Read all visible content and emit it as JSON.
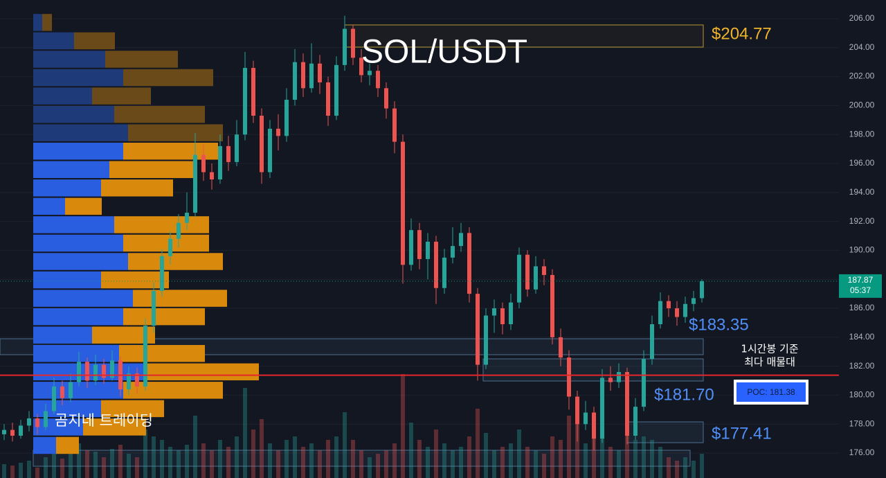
{
  "chart_data": {
    "type": "candlestick",
    "title": "SOL/USDT",
    "ylim": [
      174.28,
      207.29
    ],
    "yticks": [
      {
        "value": 206,
        "label": "206.00"
      },
      {
        "value": 204,
        "label": "204.00"
      },
      {
        "value": 202,
        "label": "202.00"
      },
      {
        "value": 200,
        "label": "200.00"
      },
      {
        "value": 198,
        "label": "198.00"
      },
      {
        "value": 196,
        "label": "196.00"
      },
      {
        "value": 194,
        "label": "194.00"
      },
      {
        "value": 192,
        "label": "192.00"
      },
      {
        "value": 190,
        "label": "190.00"
      },
      {
        "value": 188,
        "label": "188.00"
      },
      {
        "value": 186,
        "label": "186.00"
      },
      {
        "value": 184,
        "label": "184.00"
      },
      {
        "value": 182,
        "label": "182.00"
      },
      {
        "value": 180,
        "label": "180.00"
      },
      {
        "value": 178,
        "label": "178.00"
      },
      {
        "value": 176,
        "label": "176.00"
      }
    ],
    "colors": {
      "up": "#26a69a",
      "down": "#ef5350"
    },
    "ohlc": [
      [
        177.3,
        178.0,
        176.9,
        177.6
      ],
      [
        177.6,
        178.1,
        176.8,
        177.2
      ],
      [
        177.2,
        178.3,
        177.0,
        177.9
      ],
      [
        177.9,
        178.9,
        177.5,
        178.4
      ],
      [
        178.4,
        178.7,
        177.3,
        177.8
      ],
      [
        177.8,
        179.4,
        177.6,
        178.9
      ],
      [
        178.9,
        181.2,
        178.7,
        180.6
      ],
      [
        180.6,
        181.0,
        179.3,
        179.8
      ],
      [
        179.8,
        181.5,
        179.5,
        180.9
      ],
      [
        180.9,
        183.0,
        180.6,
        182.3
      ],
      [
        182.3,
        182.6,
        180.5,
        181.0
      ],
      [
        181.0,
        182.8,
        180.7,
        182.1
      ],
      [
        182.1,
        182.5,
        180.8,
        181.2
      ],
      [
        181.2,
        183.1,
        181.0,
        182.4
      ],
      [
        182.4,
        182.7,
        179.9,
        180.4
      ],
      [
        180.4,
        182.0,
        180.0,
        181.5
      ],
      [
        181.5,
        181.9,
        180.1,
        180.6
      ],
      [
        180.6,
        185.3,
        180.3,
        184.8
      ],
      [
        184.8,
        187.8,
        184.3,
        187.2
      ],
      [
        187.2,
        190.1,
        186.8,
        189.6
      ],
      [
        189.6,
        191.3,
        189.0,
        190.8
      ],
      [
        190.8,
        192.5,
        190.2,
        191.9
      ],
      [
        191.9,
        194.0,
        191.4,
        192.6
      ],
      [
        192.6,
        198.1,
        192.3,
        196.6
      ],
      [
        196.6,
        197.3,
        194.8,
        195.4
      ],
      [
        195.4,
        196.0,
        194.2,
        194.9
      ],
      [
        194.9,
        198.0,
        194.6,
        197.2
      ],
      [
        197.2,
        197.9,
        195.5,
        196.1
      ],
      [
        196.1,
        199.0,
        195.8,
        198.0
      ],
      [
        198.0,
        203.7,
        197.6,
        202.6
      ],
      [
        202.6,
        203.1,
        198.8,
        199.3
      ],
      [
        199.3,
        199.8,
        194.6,
        195.4
      ],
      [
        195.4,
        199.0,
        195.0,
        198.4
      ],
      [
        198.4,
        199.4,
        196.9,
        197.9
      ],
      [
        197.9,
        201.2,
        197.5,
        200.4
      ],
      [
        200.4,
        203.9,
        200.0,
        203.0
      ],
      [
        203.0,
        203.6,
        200.6,
        201.2
      ],
      [
        201.2,
        204.3,
        200.9,
        202.9
      ],
      [
        202.9,
        203.5,
        200.8,
        201.6
      ],
      [
        201.6,
        202.0,
        198.6,
        199.3
      ],
      [
        199.3,
        203.4,
        199.0,
        202.8
      ],
      [
        202.8,
        206.2,
        202.4,
        205.3
      ],
      [
        205.3,
        205.6,
        202.8,
        203.3
      ],
      [
        203.3,
        203.9,
        201.6,
        202.1
      ],
      [
        202.1,
        202.9,
        201.4,
        202.4
      ],
      [
        202.4,
        202.8,
        200.6,
        201.2
      ],
      [
        201.2,
        201.6,
        199.1,
        199.8
      ],
      [
        199.8,
        200.3,
        196.7,
        197.5
      ],
      [
        197.5,
        198.0,
        187.7,
        189.0
      ],
      [
        189.0,
        192.2,
        188.6,
        191.4
      ],
      [
        191.4,
        191.9,
        188.7,
        189.4
      ],
      [
        189.4,
        191.2,
        188.0,
        190.6
      ],
      [
        190.6,
        191.0,
        186.3,
        187.4
      ],
      [
        187.4,
        190.1,
        187.0,
        189.5
      ],
      [
        189.5,
        191.6,
        189.1,
        190.3
      ],
      [
        190.3,
        191.9,
        189.9,
        191.2
      ],
      [
        191.2,
        191.6,
        186.4,
        187.0
      ],
      [
        187.0,
        187.4,
        181.0,
        182.1
      ],
      [
        182.1,
        186.0,
        181.8,
        185.5
      ],
      [
        185.5,
        186.6,
        184.3,
        186.0
      ],
      [
        186.0,
        186.4,
        184.2,
        184.9
      ],
      [
        184.9,
        187.0,
        184.5,
        186.4
      ],
      [
        186.4,
        190.2,
        186.0,
        189.7
      ],
      [
        189.7,
        190.0,
        186.8,
        187.3
      ],
      [
        187.3,
        189.6,
        187.0,
        188.9
      ],
      [
        188.9,
        189.4,
        187.6,
        188.3
      ],
      [
        188.3,
        188.7,
        183.5,
        184.0
      ],
      [
        184.0,
        184.6,
        182.0,
        182.6
      ],
      [
        182.6,
        183.1,
        179.0,
        179.9
      ],
      [
        179.9,
        180.3,
        176.8,
        178.0
      ],
      [
        178.0,
        179.6,
        177.6,
        178.8
      ],
      [
        178.8,
        179.2,
        176.2,
        177.0
      ],
      [
        177.0,
        181.8,
        176.7,
        181.2
      ],
      [
        181.2,
        182.0,
        180.3,
        180.9
      ],
      [
        180.9,
        182.2,
        180.5,
        181.6
      ],
      [
        181.6,
        181.9,
        176.6,
        177.2
      ],
      [
        177.2,
        179.8,
        176.9,
        179.2
      ],
      [
        179.2,
        183.1,
        178.9,
        182.5
      ],
      [
        182.5,
        185.5,
        182.1,
        184.9
      ],
      [
        184.9,
        187.1,
        184.6,
        186.5
      ],
      [
        186.5,
        186.9,
        185.4,
        186.0
      ],
      [
        186.0,
        186.5,
        184.8,
        185.4
      ],
      [
        185.4,
        186.8,
        185.0,
        186.3
      ],
      [
        186.3,
        187.2,
        185.8,
        186.7
      ],
      [
        186.7,
        188.0,
        186.4,
        187.87
      ]
    ],
    "volume": [
      20,
      18,
      22,
      25,
      15,
      30,
      45,
      28,
      35,
      50,
      40,
      38,
      30,
      42,
      48,
      35,
      30,
      70,
      60,
      55,
      45,
      40,
      48,
      90,
      50,
      40,
      55,
      45,
      60,
      130,
      70,
      85,
      50,
      40,
      55,
      60,
      45,
      50,
      40,
      55,
      60,
      95,
      55,
      40,
      30,
      35,
      40,
      50,
      150,
      80,
      55,
      45,
      70,
      50,
      40,
      45,
      60,
      100,
      65,
      40,
      45,
      50,
      70,
      45,
      40,
      35,
      60,
      55,
      90,
      85,
      50,
      70,
      75,
      45,
      40,
      80,
      55,
      60,
      55,
      45,
      30,
      25,
      30,
      25,
      35
    ],
    "profile": {
      "levels": [
        205.74,
        204.47,
        203.2,
        201.93,
        200.66,
        199.39,
        198.12,
        196.85,
        195.58,
        194.31,
        193.04,
        191.77,
        190.5,
        189.23,
        187.96,
        186.69,
        185.42,
        184.15,
        182.88,
        181.61,
        180.34,
        179.07,
        177.8,
        176.53
      ],
      "buy": [
        13,
        59,
        104,
        130,
        85,
        117,
        137,
        130,
        110,
        98,
        46,
        117,
        130,
        137,
        98,
        144,
        130,
        85,
        124,
        163,
        130,
        98,
        72,
        33
      ],
      "sell": [
        14,
        59,
        105,
        130,
        85,
        131,
        137,
        137,
        124,
        104,
        53,
        137,
        124,
        137,
        98,
        136,
        118,
        91,
        124,
        163,
        144,
        91,
        91,
        33
      ],
      "value_area_high": 197.5,
      "colors": {
        "buy": "#2a5ee0",
        "sell": "#d98a0c",
        "buy_dim": "#1f3a78",
        "sell_dim": "#6a4a18"
      }
    },
    "current_price": {
      "value": 187.87,
      "label": "187.87",
      "countdown": "05:37",
      "color": "#089981"
    },
    "poc": {
      "value": 181.38,
      "label": "POC: 181.38",
      "color": "#e5262b"
    },
    "poc_note": [
      "1시간봉 기준",
      "최다 매물대"
    ],
    "price_labels": [
      "$204.77",
      "$183.35",
      "$181.70",
      "$177.41"
    ],
    "watermark": "곰지네 트레이딩"
  }
}
